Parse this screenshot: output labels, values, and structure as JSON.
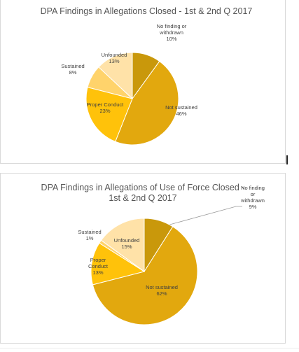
{
  "chart_data": [
    {
      "type": "pie",
      "title": "DPA Findings in Allegations Closed - 1st & 2nd Q 2017",
      "slices": [
        {
          "label_lines": [
            "No finding or",
            "withdrawn"
          ],
          "percent": "10%",
          "value": 10,
          "color": "#C9980B"
        },
        {
          "label_lines": [
            "Not sustained"
          ],
          "percent": "46%",
          "value": 46,
          "color": "#E2A80E"
        },
        {
          "label_lines": [
            "Proper Conduct"
          ],
          "percent": "23%",
          "value": 23,
          "color": "#FFC20A"
        },
        {
          "label_lines": [
            "Sustained"
          ],
          "percent": "8%",
          "value": 8,
          "color": "#FFD36B"
        },
        {
          "label_lines": [
            "Unfounded"
          ],
          "percent": "13%",
          "value": 13,
          "color": "#FFE2A8"
        }
      ]
    },
    {
      "type": "pie",
      "title_lines": [
        "DPA Findings in Allegations of Use of Force Closed -",
        "1st & 2nd Q 2017"
      ],
      "slices": [
        {
          "label_lines": [
            "No finding",
            "or",
            "withdrawn"
          ],
          "percent": "9%",
          "value": 9,
          "color": "#C9980B"
        },
        {
          "label_lines": [
            "Not sustained"
          ],
          "percent": "62%",
          "value": 62,
          "color": "#E2A80E"
        },
        {
          "label_lines": [
            "Proper",
            "Conduct"
          ],
          "percent": "13%",
          "value": 13,
          "color": "#FFC20A"
        },
        {
          "label_lines": [
            "Sustained"
          ],
          "percent": "1%",
          "value": 1,
          "color": "#FFD36B"
        },
        {
          "label_lines": [
            "Unfounded"
          ],
          "percent": "15%",
          "value": 15,
          "color": "#FFE2A8"
        }
      ]
    }
  ]
}
